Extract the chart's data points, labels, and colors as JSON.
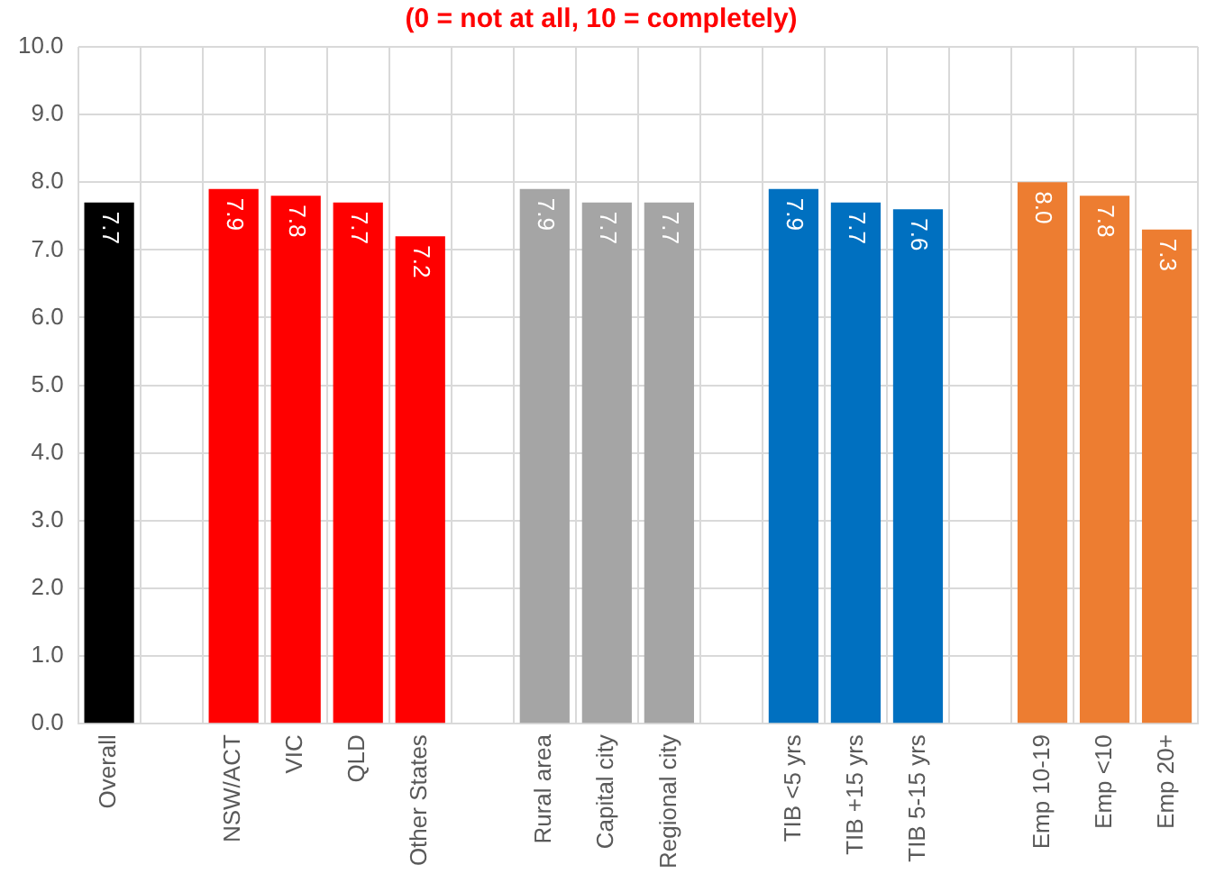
{
  "chart_data": {
    "type": "bar",
    "title": "(0 = not at all, 10 = completely)",
    "categories": [
      "Overall",
      null,
      "NSW/ACT",
      "VIC",
      "QLD",
      "Other States",
      null,
      "Rural area",
      "Capital city",
      "Regional city",
      null,
      "TIB <5 yrs",
      "TIB +15 yrs",
      "TIB 5-15 yrs",
      null,
      "Emp 10-19",
      "Emp <10",
      "Emp 20+"
    ],
    "values": [
      7.7,
      null,
      7.9,
      7.8,
      7.7,
      7.2,
      null,
      7.9,
      7.7,
      7.7,
      null,
      7.9,
      7.7,
      7.6,
      null,
      8.0,
      7.8,
      7.3
    ],
    "value_labels": [
      "7.7",
      null,
      "7.9",
      "7.8",
      "7.7",
      "7.2",
      null,
      "7.9",
      "7.7",
      "7.7",
      null,
      "7.9",
      "7.7",
      "7.6",
      null,
      "8.0",
      "7.8",
      "7.3"
    ],
    "colors": [
      "#000000",
      null,
      "#ff0000",
      "#ff0000",
      "#ff0000",
      "#ff0000",
      null,
      "#a5a5a5",
      "#a5a5a5",
      "#a5a5a5",
      null,
      "#0070c0",
      "#0070c0",
      "#0070c0",
      null,
      "#ed7d31",
      "#ed7d31",
      "#ed7d31"
    ],
    "ylim": [
      0,
      10
    ],
    "yticks": [
      {
        "value": 0,
        "label": "0.0"
      },
      {
        "value": 1,
        "label": "1.0"
      },
      {
        "value": 2,
        "label": "2.0"
      },
      {
        "value": 3,
        "label": "3.0"
      },
      {
        "value": 4,
        "label": "4.0"
      },
      {
        "value": 5,
        "label": "5.0"
      },
      {
        "value": 6,
        "label": "6.0"
      },
      {
        "value": 7,
        "label": "7.0"
      },
      {
        "value": 8,
        "label": "8.0"
      },
      {
        "value": 9,
        "label": "9.0"
      },
      {
        "value": 10,
        "label": "10.0"
      }
    ],
    "grid": true
  }
}
